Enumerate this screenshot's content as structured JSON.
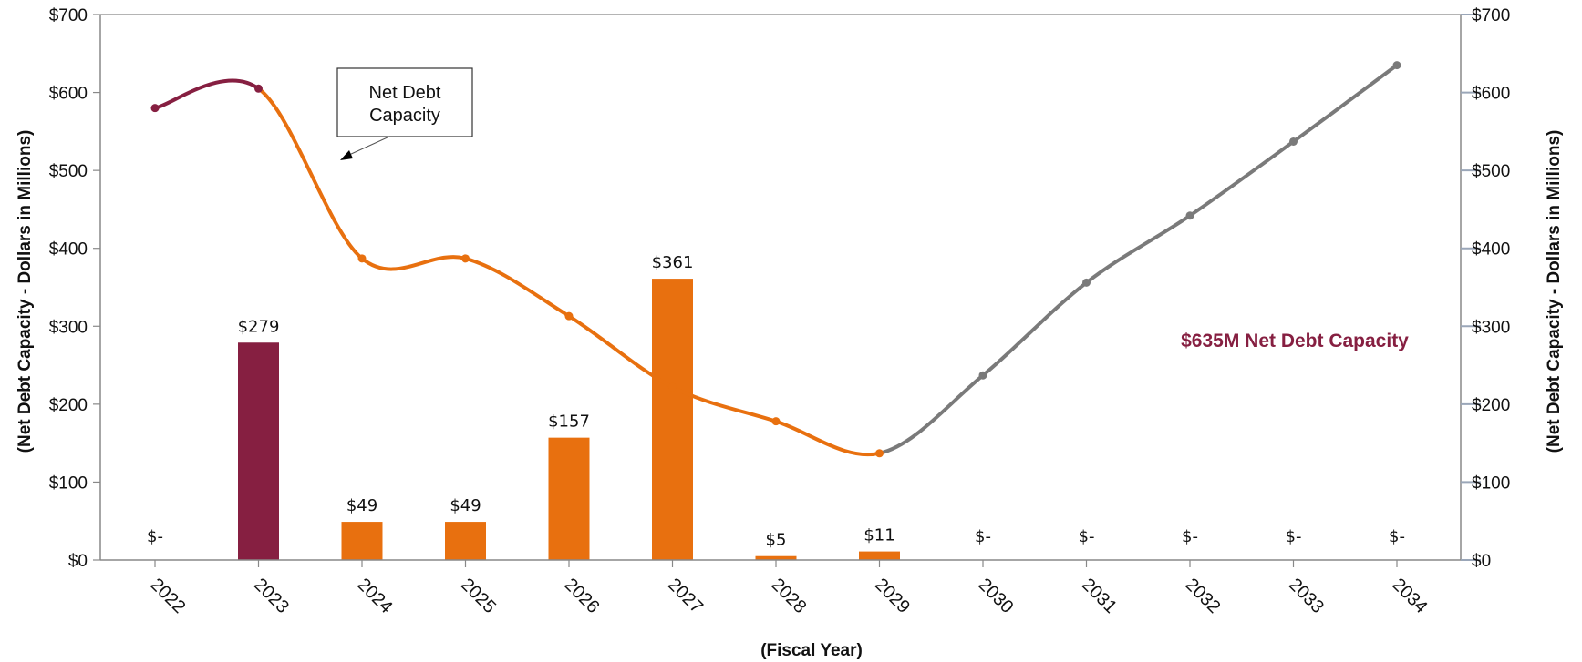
{
  "chart_data": {
    "type": "bar",
    "categories": [
      "2022",
      "2023",
      "2024",
      "2025",
      "2026",
      "2027",
      "2028",
      "2029",
      "2030",
      "2031",
      "2032",
      "2033",
      "2034"
    ],
    "bars": {
      "values": [
        0,
        279,
        49,
        49,
        157,
        361,
        5,
        11,
        0,
        0,
        0,
        0,
        0
      ],
      "labels": [
        "$-",
        "$279",
        "$49",
        "$49",
        "$157",
        "$361",
        "$5",
        "$11",
        "$-",
        "$-",
        "$-",
        "$-",
        "$-"
      ],
      "colors": [
        "#e8700f",
        "#861f41",
        "#e8700f",
        "#e8700f",
        "#e8700f",
        "#e8700f",
        "#e8700f",
        "#e8700f",
        "#e8700f",
        "#e8700f",
        "#e8700f",
        "#e8700f",
        "#e8700f"
      ]
    },
    "line": {
      "name": "Net Debt Capacity",
      "values": [
        580,
        605,
        387,
        387,
        313,
        222,
        178,
        137,
        237,
        356,
        442,
        537,
        635
      ],
      "segment_colors": [
        "#861f41",
        "#e8700f",
        "#7a7a7a"
      ],
      "segment_breaks": [
        1,
        7
      ]
    },
    "yaxis_left": {
      "title": "(Net Debt Capacity - Dollars in Millions)",
      "ticks": [
        0,
        100,
        200,
        300,
        400,
        500,
        600,
        700
      ],
      "tick_labels": [
        "$0",
        "$100",
        "$200",
        "$300",
        "$400",
        "$500",
        "$600",
        "$700"
      ]
    },
    "yaxis_right": {
      "title": "(Net Debt Capacity - Dollars in Millions)",
      "ticks": [
        0,
        100,
        200,
        300,
        400,
        500,
        600,
        700
      ],
      "tick_labels": [
        "$0",
        "$100",
        "$200",
        "$300",
        "$400",
        "$500",
        "$600",
        "$700"
      ]
    },
    "ylim": [
      0,
      700
    ],
    "xlabel": "(Fiscal Year)",
    "callout": {
      "line1": "Net Debt",
      "line2": "Capacity"
    },
    "annotation": {
      "text": "$635M Net Debt Capacity",
      "color": "#861f41"
    },
    "grid": false,
    "legend": "none"
  }
}
